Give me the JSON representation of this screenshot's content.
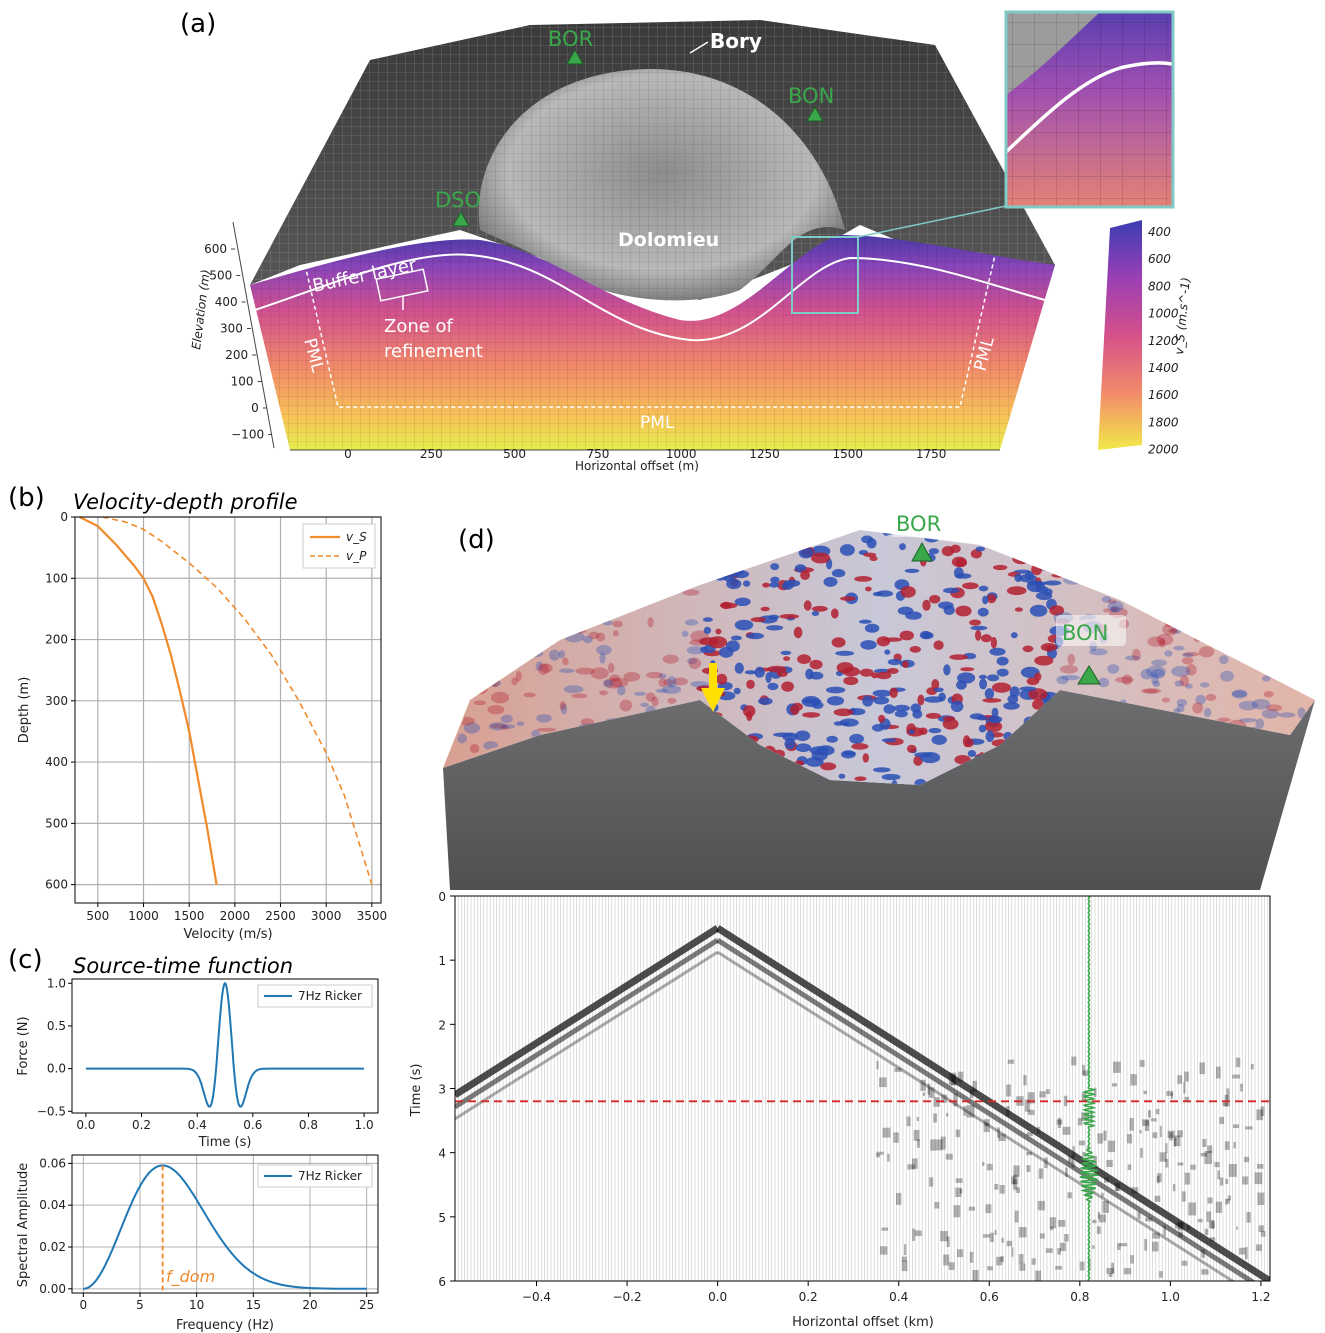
{
  "panels": {
    "a": {
      "label": "(a)",
      "stations": [
        "BOR",
        "BON",
        "DSO"
      ],
      "features": {
        "bory": "Bory",
        "dolomieu": "Dolomieu",
        "buffer": "Buffer layer",
        "zone1": "Zone of",
        "zone2": "refinement",
        "pml": "PML"
      },
      "y_axis_label": "Elevation (m)",
      "y_ticks": [
        "600",
        "500",
        "400",
        "300",
        "200",
        "100",
        "0",
        "−100"
      ],
      "x_axis_label": "Horizontal offset (m)",
      "x_ticks": [
        "0",
        "250",
        "500",
        "750",
        "1000",
        "1250",
        "1500",
        "1750"
      ],
      "colorbar_label": "v_S (m.s^-1)",
      "colorbar_ticks": [
        "400",
        "600",
        "800",
        "1000",
        "1200",
        "1400",
        "1600",
        "1800",
        "2000"
      ]
    },
    "b": {
      "label": "(b)",
      "title": "Velocity-depth profile",
      "xlabel": "Velocity (m/s)",
      "ylabel": "Depth (m)",
      "legend": [
        "v_S",
        "v_P"
      ]
    },
    "c": {
      "label": "(c)",
      "title": "Source-time function",
      "top": {
        "xlabel": "Time (s)",
        "ylabel": "Force (N)",
        "legend": "7Hz Ricker"
      },
      "bottom": {
        "xlabel": "Frequency (Hz)",
        "ylabel": "Spectral Amplitude",
        "legend": "7Hz Ricker",
        "annotation": "f_dom"
      }
    },
    "d": {
      "label": "(d)",
      "stations": [
        "BOR",
        "BON"
      ],
      "xlabel": "Horizontal offset (km)",
      "ylabel": "Time (s)"
    }
  },
  "colors": {
    "vs_line": "#f08a2b",
    "ricker": "#1f77b4",
    "station": "#3aa84a",
    "red_dash": "#d62728"
  },
  "chart_data": [
    {
      "type": "line",
      "panel": "b",
      "xlim": [
        250,
        3600
      ],
      "ylim": [
        0,
        630
      ],
      "y_inverted": true,
      "x_ticks": [
        500,
        1000,
        1500,
        2000,
        2500,
        3000,
        3500
      ],
      "y_ticks": [
        0,
        100,
        200,
        300,
        400,
        500,
        600
      ],
      "grid": true,
      "legend_position": "top-right",
      "series": [
        {
          "name": "v_S",
          "style": "solid",
          "x": [
            300,
            500,
            700,
            900,
            1000,
            1100,
            1200,
            1300,
            1400,
            1500,
            1600,
            1700,
            1800
          ],
          "y": [
            0,
            15,
            45,
            80,
            100,
            130,
            175,
            225,
            285,
            350,
            430,
            510,
            600
          ]
        },
        {
          "name": "v_P",
          "style": "dashed",
          "x": [
            550,
            800,
            1000,
            1200,
            1500,
            1800,
            2100,
            2400,
            2700,
            3000,
            3200,
            3500
          ],
          "y": [
            0,
            8,
            20,
            40,
            75,
            115,
            165,
            225,
            300,
            385,
            455,
            600
          ]
        }
      ]
    },
    {
      "type": "line",
      "panel": "c-top",
      "xlim": [
        -0.05,
        1.05
      ],
      "ylim": [
        -0.52,
        1.05
      ],
      "x_ticks": [
        0.0,
        0.2,
        0.4,
        0.6,
        0.8,
        1.0
      ],
      "y_ticks": [
        -0.5,
        0.0,
        0.5,
        1.0
      ],
      "grid": false,
      "legend_position": "top-right",
      "series": [
        {
          "name": "7Hz Ricker",
          "function": "ricker",
          "f0_hz": 7,
          "t0_s": 0.5,
          "x_range": [
            0,
            1
          ]
        }
      ]
    },
    {
      "type": "line",
      "panel": "c-bottom",
      "xlim": [
        -1,
        26
      ],
      "ylim": [
        -0.002,
        0.064
      ],
      "x_ticks": [
        0,
        5,
        10,
        15,
        20,
        25
      ],
      "y_ticks": [
        0.0,
        0.02,
        0.04,
        0.06
      ],
      "grid": true,
      "legend_position": "top-right",
      "dominant_frequency_hz": 7,
      "series": [
        {
          "name": "7Hz Ricker",
          "function": "ricker_spectrum",
          "f0_hz": 7,
          "peak": 0.059,
          "x_range": [
            0,
            25
          ]
        }
      ]
    },
    {
      "type": "heatmap",
      "panel": "d-seismogram",
      "xlim": [
        -0.58,
        1.22
      ],
      "ylim": [
        0,
        6
      ],
      "y_inverted": true,
      "x_ticks": [
        -0.4,
        -0.2,
        0.0,
        0.2,
        0.4,
        0.6,
        0.8,
        1.0,
        1.2
      ],
      "y_ticks": [
        0,
        1,
        2,
        3,
        4,
        5,
        6
      ],
      "source_offset_km": 0.0,
      "first_arrival_time_s": 0.5,
      "highlight_trace_km": 0.82,
      "red_dash_time_s": 3.2
    }
  ]
}
